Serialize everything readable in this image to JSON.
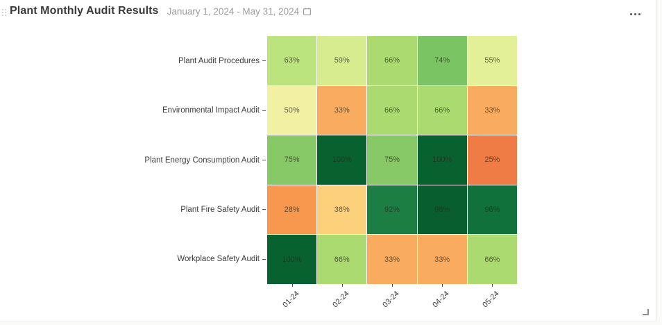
{
  "header": {
    "title": "Plant Monthly Audit Results",
    "date_range": "January 1, 2024 - May 31, 2024"
  },
  "icons": {
    "drag_handle": "grip-dots",
    "calendar": "calendar",
    "more_options": "ellipsis",
    "resize": "corner-resize"
  },
  "chart_data": {
    "type": "heatmap",
    "title": "Plant Monthly Audit Results",
    "rows": [
      "Plant Audit Procedures",
      "Environmental Impact Audit",
      "Plant Energy Consumption Audit",
      "Plant Fire Safety Audit",
      "Workplace Safety Audit"
    ],
    "columns": [
      "01-24",
      "02-24",
      "03-24",
      "04-24",
      "05-24"
    ],
    "values": [
      [
        63,
        59,
        66,
        74,
        55
      ],
      [
        50,
        33,
        66,
        66,
        33
      ],
      [
        75,
        100,
        75,
        100,
        25
      ],
      [
        28,
        38,
        92,
        98,
        96
      ],
      [
        100,
        66,
        33,
        33,
        66
      ]
    ],
    "value_suffix": "%",
    "color_scale": "red-yellow-green",
    "color_map": {
      "25": "#ee7c44",
      "28": "#f8984e",
      "33": "#f9ac60",
      "38": "#fdd07c",
      "50": "#f2f0a3",
      "55": "#e4f097",
      "59": "#d6ec8e",
      "63": "#bce47e",
      "66": "#abdb70",
      "74": "#7bc463",
      "75": "#86c966",
      "92": "#1d7e44",
      "96": "#10713a",
      "98": "#095e2f",
      "100": "#076230"
    },
    "legend": false,
    "grid": false,
    "xlabel": "",
    "ylabel": ""
  }
}
